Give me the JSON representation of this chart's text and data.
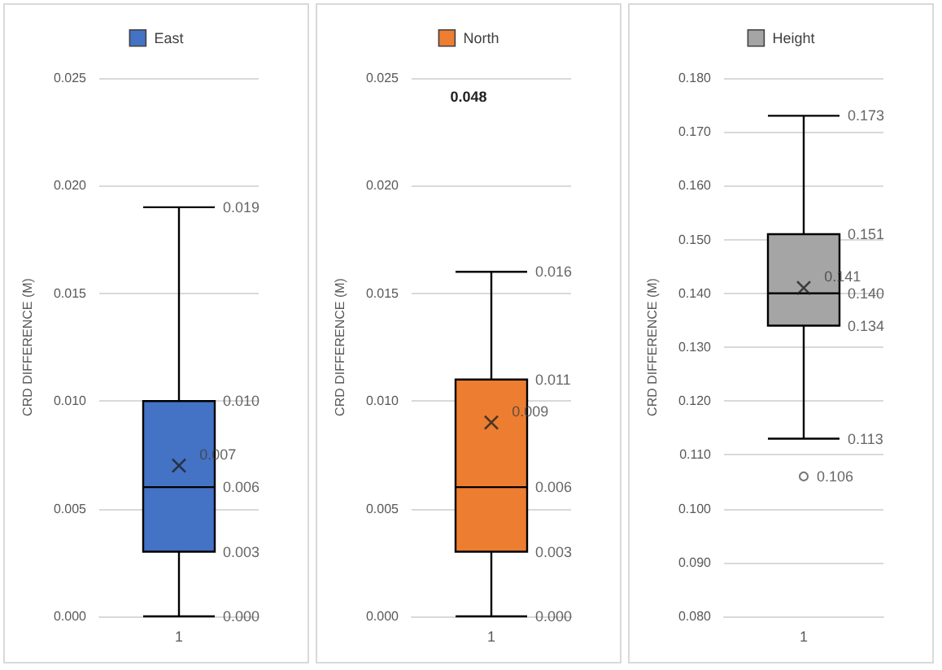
{
  "chart_data": [
    {
      "type": "box",
      "categories": [
        "1"
      ],
      "ylabel": "CRD DIFFERENCE (M)",
      "ylim": [
        0,
        0.025
      ],
      "yticks": [
        {
          "value": 0,
          "label": "0.000"
        },
        {
          "value": 0.005,
          "label": "0.005"
        },
        {
          "value": 0.01,
          "label": "0.010"
        },
        {
          "value": 0.015,
          "label": "0.015"
        },
        {
          "value": 0.02,
          "label": "0.020"
        },
        {
          "value": 0.025,
          "label": "0.025"
        }
      ],
      "grid": "y",
      "legend": "top",
      "annotations": [
        {
          "text": "0.000",
          "x": "1",
          "y": 0.0
        },
        {
          "text": "0.003",
          "x": "1",
          "y": 0.003
        },
        {
          "text": "0.006",
          "x": "1",
          "y": 0.006
        },
        {
          "text": "0.010",
          "x": "1",
          "y": 0.01
        },
        {
          "text": "0.019",
          "x": "1",
          "y": 0.019
        }
      ],
      "series": [
        {
          "name": "East",
          "color": "#4472c4",
          "boxes": [
            {
              "low": 0.0,
              "q1": 0.003,
              "median": 0.006,
              "q3": 0.01,
              "high": 0.019
            }
          ]
        },
        {
          "type": "scatter",
          "x": [
            "1"
          ],
          "values": [
            0.007
          ],
          "value_labels": [
            "0.007"
          ],
          "marker": "cross",
          "color": "#222222"
        }
      ]
    },
    {
      "type": "box",
      "categories": [
        "1"
      ],
      "ylabel": "CRD DIFFERENCE (M)",
      "ylim": [
        0,
        0.025
      ],
      "yticks": [
        {
          "value": 0,
          "label": "0.000"
        },
        {
          "value": 0.005,
          "label": "0.005"
        },
        {
          "value": 0.01,
          "label": "0.010"
        },
        {
          "value": 0.015,
          "label": "0.015"
        },
        {
          "value": 0.02,
          "label": "0.020"
        },
        {
          "value": 0.025,
          "label": "0.025"
        }
      ],
      "grid": "y",
      "legend": "top",
      "annotations": [
        "0.048",
        {
          "text": "0.000",
          "x": "1",
          "y": 0.0
        },
        {
          "text": "0.003",
          "x": "1",
          "y": 0.003
        },
        {
          "text": "0.006",
          "x": "1",
          "y": 0.006
        },
        {
          "text": "0.011",
          "x": "1",
          "y": 0.011
        },
        {
          "text": "0.016",
          "x": "1",
          "y": 0.016
        }
      ],
      "series": [
        {
          "name": "North",
          "color": "#ed7d31",
          "boxes": [
            {
              "low": 0.0,
              "q1": 0.003,
              "median": 0.006,
              "q3": 0.011,
              "high": 0.016
            }
          ]
        },
        {
          "type": "scatter",
          "x": [
            "1"
          ],
          "values": [
            0.009
          ],
          "value_labels": [
            "0.009"
          ],
          "marker": "cross",
          "color": "#222222"
        }
      ]
    },
    {
      "type": "box",
      "categories": [
        "1"
      ],
      "ylabel": "CRD DIFFERENCE (M)",
      "ylim": [
        0.08,
        0.18
      ],
      "yticks": [
        {
          "value": 0.08,
          "label": "0.080"
        },
        {
          "value": 0.09,
          "label": "0.090"
        },
        {
          "value": 0.1,
          "label": "0.100"
        },
        {
          "value": 0.11,
          "label": "0.110"
        },
        {
          "value": 0.12,
          "label": "0.120"
        },
        {
          "value": 0.13,
          "label": "0.130"
        },
        {
          "value": 0.14,
          "label": "0.140"
        },
        {
          "value": 0.15,
          "label": "0.150"
        },
        {
          "value": 0.16,
          "label": "0.160"
        },
        {
          "value": 0.17,
          "label": "0.170"
        },
        {
          "value": 0.18,
          "label": "0.180"
        }
      ],
      "grid": "y",
      "legend": "top",
      "annotations": [
        {
          "text": "0.113",
          "x": "1",
          "y": 0.113
        },
        {
          "text": "0.134",
          "x": "1",
          "y": 0.134
        },
        {
          "text": "0.140",
          "x": "1",
          "y": 0.14
        },
        {
          "text": "0.151",
          "x": "1",
          "y": 0.151
        },
        {
          "text": "0.173",
          "x": "1",
          "y": 0.173
        }
      ],
      "series": [
        {
          "name": "Height",
          "color": "#a5a5a5",
          "boxes": [
            {
              "low": 0.113,
              "q1": 0.134,
              "median": 0.14,
              "q3": 0.151,
              "high": 0.173
            }
          ]
        },
        {
          "type": "scatter",
          "x": [
            "1"
          ],
          "values": [
            0.141
          ],
          "value_labels": [
            "0.141"
          ],
          "marker": "cross",
          "color": "#222222"
        },
        {
          "type": "scatter",
          "x": [
            "1"
          ],
          "values": [
            0.106
          ],
          "value_labels": [
            "0.106"
          ],
          "marker": "circle",
          "color": "#555555"
        }
      ]
    }
  ]
}
